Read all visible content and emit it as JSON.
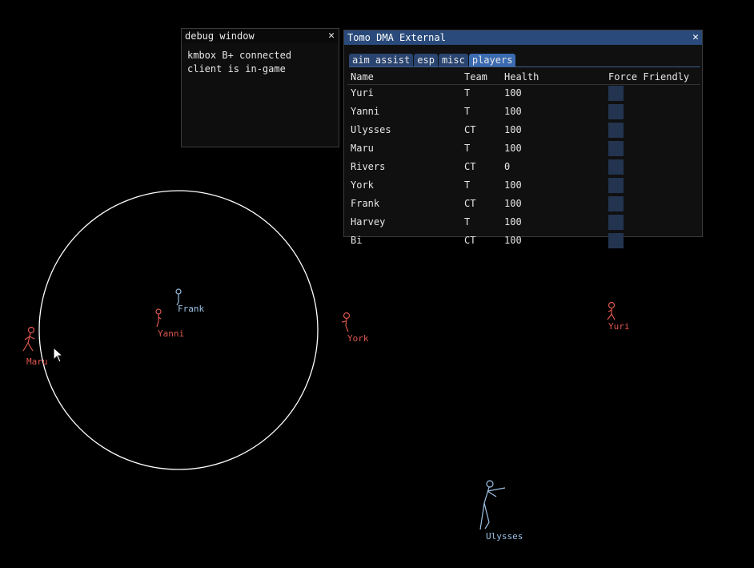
{
  "debug_window": {
    "title": "debug window",
    "close_glyph": "✕",
    "lines": [
      "kmbox B+ connected",
      "client is in-game"
    ]
  },
  "main_window": {
    "title": "Tomo DMA External",
    "close_glyph": "✕",
    "tabs": [
      {
        "label": "aim assist",
        "active": false
      },
      {
        "label": "esp",
        "active": false
      },
      {
        "label": "misc",
        "active": false
      },
      {
        "label": "players",
        "active": true
      }
    ],
    "table": {
      "headers": [
        "Name",
        "Team",
        "Health",
        "Force Friendly"
      ],
      "rows": [
        {
          "name": "Yuri",
          "team": "T",
          "health": "100",
          "force_friendly": false
        },
        {
          "name": "Yanni",
          "team": "T",
          "health": "100",
          "force_friendly": false
        },
        {
          "name": "Ulysses",
          "team": "CT",
          "health": "100",
          "force_friendly": false
        },
        {
          "name": "Maru",
          "team": "T",
          "health": "100",
          "force_friendly": false
        },
        {
          "name": "Rivers",
          "team": "CT",
          "health": "0",
          "force_friendly": false
        },
        {
          "name": "York",
          "team": "T",
          "health": "100",
          "force_friendly": false
        },
        {
          "name": "Frank",
          "team": "CT",
          "health": "100",
          "force_friendly": false
        },
        {
          "name": "Harvey",
          "team": "T",
          "health": "100",
          "force_friendly": false
        },
        {
          "name": "Bi",
          "team": "CT",
          "health": "100",
          "force_friendly": false
        }
      ]
    }
  },
  "esp": {
    "team_colors": {
      "T": "#e0574f",
      "CT": "#9cc3e6"
    },
    "fov_circle_color": "#ffffff",
    "players": [
      {
        "name": "Frank",
        "team": "CT"
      },
      {
        "name": "Yanni",
        "team": "T"
      },
      {
        "name": "Maru",
        "team": "T"
      },
      {
        "name": "York",
        "team": "T"
      },
      {
        "name": "Yuri",
        "team": "T"
      },
      {
        "name": "Ulysses",
        "team": "CT"
      }
    ]
  }
}
